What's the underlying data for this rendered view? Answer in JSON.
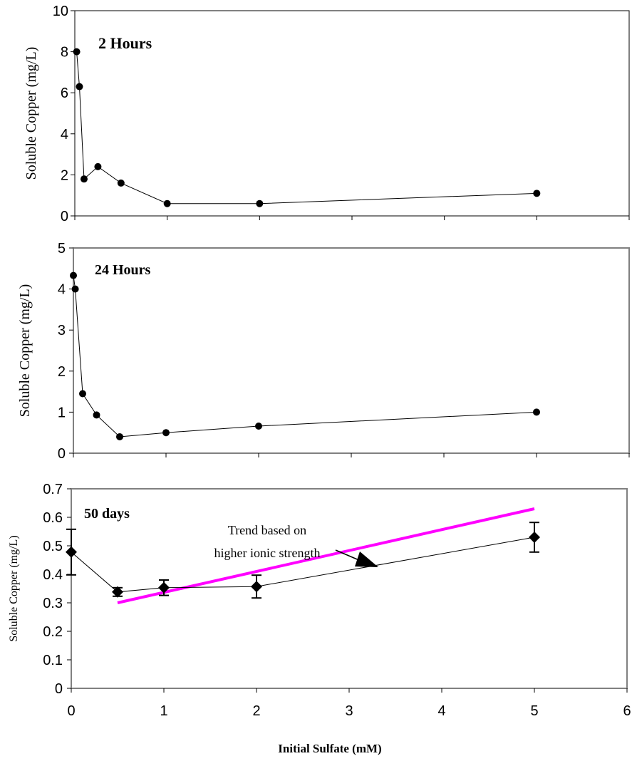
{
  "chart_data": [
    {
      "type": "line",
      "title": "2 Hours",
      "ylabel": "Soluble Copper (mg/L)",
      "xlim": [
        0,
        6
      ],
      "ylim": [
        0,
        10
      ],
      "y_ticks": [
        "0",
        "2",
        "4",
        "6",
        "8",
        "10"
      ],
      "grid": false,
      "series": [
        {
          "x": [
            0.02,
            0.05,
            0.1,
            0.25,
            0.5,
            1.0,
            2.0,
            5.0
          ],
          "y": [
            8.0,
            6.3,
            1.8,
            2.4,
            1.6,
            0.6,
            0.6,
            1.1
          ]
        }
      ]
    },
    {
      "type": "line",
      "title": "24 Hours",
      "ylabel": "Soluble Copper (mg/L)",
      "xlim": [
        0,
        6
      ],
      "ylim": [
        0,
        5
      ],
      "y_ticks": [
        "0",
        "1",
        "2",
        "3",
        "4",
        "5"
      ],
      "grid": false,
      "series": [
        {
          "x": [
            0.0,
            0.02,
            0.1,
            0.25,
            0.5,
            1.0,
            2.0,
            5.0
          ],
          "y": [
            4.33,
            4.0,
            1.45,
            0.93,
            0.4,
            0.5,
            0.66,
            1.0
          ]
        }
      ]
    },
    {
      "type": "line",
      "title": "50 days",
      "ylabel": "Soluble Copper (mg/L)",
      "xlabel": "Initial Sulfate (mM)",
      "xlim": [
        0,
        6
      ],
      "ylim": [
        0,
        0.7
      ],
      "x_ticks": [
        "0",
        "1",
        "2",
        "3",
        "4",
        "5",
        "6"
      ],
      "y_ticks": [
        "0",
        "0.1",
        "0.2",
        "0.3",
        "0.4",
        "0.5",
        "0.6",
        "0.7"
      ],
      "grid": false,
      "series": [
        {
          "x": [
            0,
            0.5,
            1,
            2,
            5
          ],
          "y": [
            0.478,
            0.338,
            0.353,
            0.357,
            0.53
          ],
          "error": [
            0.08,
            0.015,
            0.027,
            0.04,
            0.052
          ]
        }
      ],
      "trend_line": {
        "x": [
          0.5,
          5
        ],
        "y": [
          0.3,
          0.63
        ],
        "color": "#ff00ff"
      },
      "annotation": {
        "line1": "Trend based on",
        "line2": "higher ionic strength"
      }
    }
  ]
}
